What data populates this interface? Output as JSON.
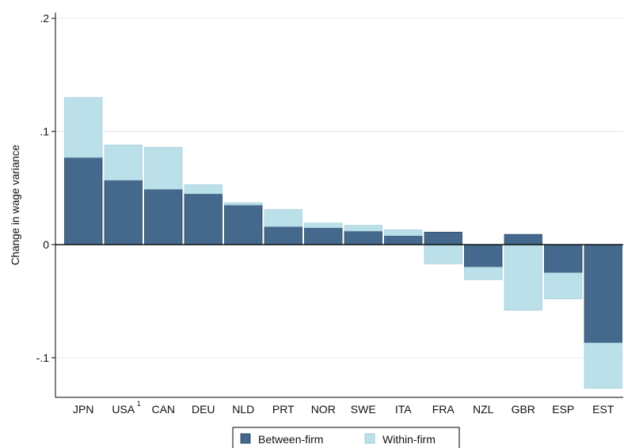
{
  "chart_data": {
    "type": "bar",
    "stacked": true,
    "title": "",
    "xlabel": "",
    "ylabel": "Change in wage variance",
    "ylim": [
      -0.135,
      0.205
    ],
    "yticks": [
      {
        "value": 0.2,
        "label": ".2"
      },
      {
        "value": 0.1,
        "label": ".1"
      },
      {
        "value": 0,
        "label": "0"
      },
      {
        "value": -0.1,
        "label": "-.1"
      }
    ],
    "grid": true,
    "legend_position": "bottom",
    "categories": [
      "JPN",
      "USA",
      "CAN",
      "DEU",
      "NLD",
      "PRT",
      "NOR",
      "SWE",
      "ITA",
      "FRA",
      "NZL",
      "GBR",
      "ESP",
      "EST"
    ],
    "category_superscripts": {
      "USA": "1"
    },
    "series": [
      {
        "name": "Between-firm",
        "color": "#44698c",
        "values": [
          0.077,
          0.057,
          0.049,
          0.045,
          0.035,
          0.016,
          0.015,
          0.012,
          0.008,
          0.011,
          -0.02,
          0.009,
          -0.025,
          -0.087
        ]
      },
      {
        "name": "Within-firm",
        "color": "#bce0e9",
        "values": [
          0.053,
          0.031,
          0.037,
          0.008,
          0.002,
          0.015,
          0.004,
          0.005,
          0.005,
          -0.017,
          -0.011,
          -0.058,
          -0.023,
          -0.04
        ]
      }
    ]
  }
}
